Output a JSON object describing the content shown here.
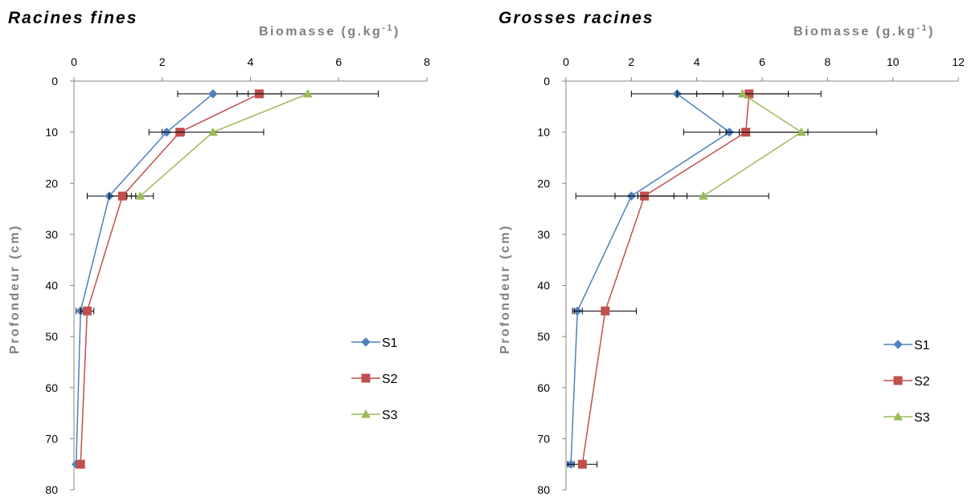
{
  "chart_data": [
    {
      "type": "line",
      "title": "Racines fines",
      "xlabel": "Biomasse (g.kg",
      "xlabel_sup": "-1",
      "xlabel_close": ")",
      "ylabel": "Profondeur (cm)",
      "xlim": [
        0,
        8
      ],
      "ylim": [
        0,
        80
      ],
      "y_inverted": true,
      "x_axis_position": "top",
      "xticks": [
        0,
        2,
        4,
        6,
        8
      ],
      "yticks": [
        0,
        10,
        20,
        30,
        40,
        50,
        60,
        70,
        80
      ],
      "legend_position": "right",
      "series": [
        {
          "name": "S1",
          "color": "#4f81bd",
          "marker": "diamond",
          "points": [
            [
              3.15,
              2.5
            ],
            [
              2.1,
              10
            ],
            [
              0.8,
              22.5
            ],
            [
              0.15,
              45
            ],
            [
              0.05,
              75
            ]
          ],
          "err": [
            0.8,
            0.4,
            0.5,
            0.1,
            0.0
          ]
        },
        {
          "name": "S2",
          "color": "#c0504d",
          "marker": "square",
          "points": [
            [
              4.2,
              2.5
            ],
            [
              2.4,
              10
            ],
            [
              1.1,
              22.5
            ],
            [
              0.3,
              45
            ],
            [
              0.15,
              75
            ]
          ],
          "err": [
            0.5,
            0.0,
            0.3,
            0.15,
            0.0
          ]
        },
        {
          "name": "S3",
          "color": "#9bbb59",
          "marker": "triangle",
          "points": [
            [
              5.3,
              2.5
            ],
            [
              3.15,
              10
            ],
            [
              1.5,
              22.5
            ]
          ],
          "err": [
            1.6,
            1.15,
            0.3
          ]
        }
      ]
    },
    {
      "type": "line",
      "title": "Grosses racines",
      "xlabel": "Biomasse (g.kg",
      "xlabel_sup": "-1",
      "xlabel_close": ")",
      "ylabel": "Profondeur (cm)",
      "xlim": [
        0,
        12
      ],
      "ylim": [
        0,
        80
      ],
      "y_inverted": true,
      "x_axis_position": "top",
      "xticks": [
        0,
        2,
        4,
        6,
        8,
        10,
        12
      ],
      "yticks": [
        0,
        10,
        20,
        30,
        40,
        50,
        60,
        70,
        80
      ],
      "legend_position": "right",
      "series": [
        {
          "name": "S1",
          "color": "#4f81bd",
          "marker": "diamond",
          "points": [
            [
              3.4,
              2.5
            ],
            [
              5.0,
              10
            ],
            [
              2.0,
              22.5
            ],
            [
              0.35,
              45
            ],
            [
              0.15,
              75
            ]
          ],
          "err": [
            1.4,
            0.3,
            1.7,
            0.15,
            0.1
          ]
        },
        {
          "name": "S2",
          "color": "#c0504d",
          "marker": "square",
          "points": [
            [
              5.6,
              2.5
            ],
            [
              5.5,
              10
            ],
            [
              2.4,
              22.5
            ],
            [
              1.2,
              45
            ],
            [
              0.5,
              75
            ]
          ],
          "err": [
            2.2,
            1.9,
            0.9,
            0.95,
            0.45
          ]
        },
        {
          "name": "S3",
          "color": "#9bbb59",
          "marker": "triangle",
          "points": [
            [
              5.4,
              2.5
            ],
            [
              7.2,
              10
            ],
            [
              4.2,
              22.5
            ]
          ],
          "err": [
            1.4,
            2.3,
            2.0
          ]
        }
      ]
    }
  ]
}
